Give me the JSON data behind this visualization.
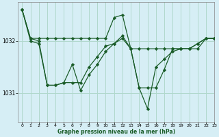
{
  "title": "Graphe pression niveau de la mer (hPa)",
  "background_color": "#d6eef5",
  "grid_color": "#b0d8cc",
  "line_color": "#1a5c28",
  "xlim": [
    -0.5,
    23
  ],
  "ylim": [
    1030.45,
    1032.75
  ],
  "yticks": [
    1031,
    1032
  ],
  "xticks": [
    0,
    1,
    2,
    3,
    4,
    5,
    6,
    7,
    8,
    9,
    10,
    11,
    12,
    13,
    14,
    15,
    16,
    17,
    18,
    19,
    20,
    21,
    22,
    23
  ],
  "series": [
    {
      "x": [
        0,
        1,
        2,
        3,
        4,
        5,
        6,
        7,
        8,
        9,
        10,
        11,
        12,
        13,
        14,
        15,
        16,
        17,
        18,
        19,
        20,
        21,
        22,
        23
      ],
      "y": [
        1032.6,
        1032.0,
        1031.95,
        1031.15,
        1031.15,
        1031.2,
        1031.55,
        1031.05,
        1031.35,
        1031.55,
        1031.8,
        1031.95,
        1032.05,
        1031.85,
        1031.1,
        1030.7,
        1031.5,
        1031.65,
        1031.8,
        1031.85,
        1031.85,
        1031.95,
        1032.05,
        1032.05
      ]
    },
    {
      "x": [
        0,
        1,
        2,
        3,
        4,
        5,
        6,
        7,
        8,
        9,
        10,
        11,
        12,
        13,
        14,
        15,
        16,
        17,
        18,
        19,
        20,
        21,
        22,
        23
      ],
      "y": [
        1032.6,
        1032.05,
        1032.0,
        1031.15,
        1031.15,
        1031.2,
        1031.2,
        1031.2,
        1031.5,
        1031.7,
        1031.9,
        1031.95,
        1032.1,
        1031.85,
        1031.85,
        1031.85,
        1031.85,
        1031.85,
        1031.85,
        1031.85,
        1031.85,
        1031.95,
        1032.05,
        1032.05
      ]
    },
    {
      "x": [
        0,
        1,
        2,
        3,
        4,
        5,
        6,
        7,
        8,
        9,
        10,
        11,
        12,
        13,
        14,
        15,
        16,
        17,
        18,
        19,
        20,
        21,
        22,
        23
      ],
      "y": [
        1032.6,
        1032.05,
        1032.05,
        1032.05,
        1032.05,
        1032.05,
        1032.05,
        1032.05,
        1032.05,
        1032.05,
        1032.05,
        1032.45,
        1032.5,
        1031.85,
        1031.1,
        1031.1,
        1031.1,
        1031.45,
        1031.85,
        1031.85,
        1031.85,
        1031.85,
        1032.05,
        1032.05
      ]
    }
  ]
}
